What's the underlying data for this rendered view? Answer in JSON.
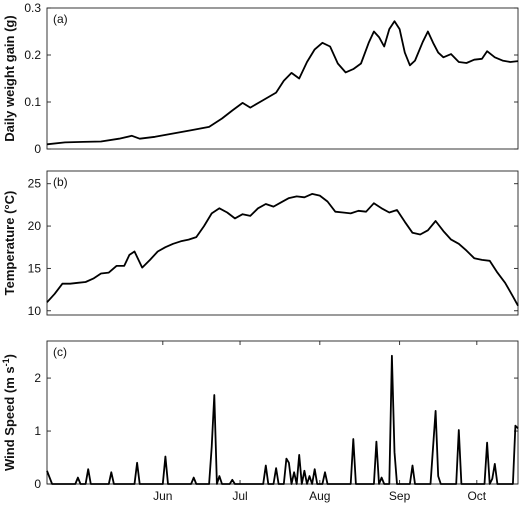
{
  "chart_data": [
    {
      "type": "line",
      "panel_label": "(a)",
      "xlabel": "",
      "ylabel": "Daily weight gain (g)",
      "x_type": "date",
      "xlim": [
        "2016-05-01",
        "2016-10-31"
      ],
      "ylim": [
        0,
        0.3
      ],
      "yticks": [
        0,
        0.1,
        0.2,
        0.3
      ],
      "ytick_labels": [
        "0",
        "0.1",
        "0.2",
        "0.3"
      ],
      "grid": false,
      "series": [
        {
          "color": "#000000",
          "points": [
            [
              "2016-05-01",
              0.01
            ],
            [
              "2016-05-08",
              0.014
            ],
            [
              "2016-05-15",
              0.015
            ],
            [
              "2016-05-22",
              0.016
            ],
            [
              "2016-05-29",
              0.022
            ],
            [
              "2016-06-03",
              0.028
            ],
            [
              "2016-06-06",
              0.022
            ],
            [
              "2016-06-12",
              0.026
            ],
            [
              "2016-06-19",
              0.033
            ],
            [
              "2016-06-26",
              0.04
            ],
            [
              "2016-07-03",
              0.047
            ],
            [
              "2016-07-08",
              0.065
            ],
            [
              "2016-07-12",
              0.082
            ],
            [
              "2016-07-16",
              0.098
            ],
            [
              "2016-07-19",
              0.088
            ],
            [
              "2016-07-24",
              0.104
            ],
            [
              "2016-07-29",
              0.12
            ],
            [
              "2016-08-01",
              0.145
            ],
            [
              "2016-08-04",
              0.162
            ],
            [
              "2016-08-07",
              0.15
            ],
            [
              "2016-08-10",
              0.185
            ],
            [
              "2016-08-13",
              0.212
            ],
            [
              "2016-08-16",
              0.226
            ],
            [
              "2016-08-19",
              0.218
            ],
            [
              "2016-08-22",
              0.182
            ],
            [
              "2016-08-25",
              0.163
            ],
            [
              "2016-08-28",
              0.17
            ],
            [
              "2016-08-31",
              0.182
            ],
            [
              "2016-09-03",
              0.226
            ],
            [
              "2016-09-05",
              0.25
            ],
            [
              "2016-09-07",
              0.238
            ],
            [
              "2016-09-09",
              0.218
            ],
            [
              "2016-09-11",
              0.255
            ],
            [
              "2016-09-13",
              0.272
            ],
            [
              "2016-09-15",
              0.255
            ],
            [
              "2016-09-17",
              0.205
            ],
            [
              "2016-09-19",
              0.178
            ],
            [
              "2016-09-21",
              0.188
            ],
            [
              "2016-09-24",
              0.228
            ],
            [
              "2016-09-26",
              0.25
            ],
            [
              "2016-09-28",
              0.226
            ],
            [
              "2016-09-30",
              0.205
            ],
            [
              "2016-10-02",
              0.195
            ],
            [
              "2016-10-05",
              0.202
            ],
            [
              "2016-10-08",
              0.185
            ],
            [
              "2016-10-11",
              0.183
            ],
            [
              "2016-10-14",
              0.19
            ],
            [
              "2016-10-17",
              0.192
            ],
            [
              "2016-10-19",
              0.208
            ],
            [
              "2016-10-22",
              0.195
            ],
            [
              "2016-10-25",
              0.188
            ],
            [
              "2016-10-28",
              0.185
            ],
            [
              "2016-10-31",
              0.187
            ]
          ]
        }
      ]
    },
    {
      "type": "line",
      "panel_label": "(b)",
      "xlabel": "",
      "ylabel": "Temperature (°C)",
      "x_type": "date",
      "xlim": [
        "2016-05-01",
        "2016-10-31"
      ],
      "ylim": [
        9.5,
        26.5
      ],
      "yticks": [
        10,
        15,
        20,
        25
      ],
      "ytick_labels": [
        "10",
        "15",
        "20",
        "25"
      ],
      "grid": false,
      "series": [
        {
          "color": "#000000",
          "points": [
            [
              "2016-05-01",
              11.0
            ],
            [
              "2016-05-04",
              12.0
            ],
            [
              "2016-05-07",
              13.2
            ],
            [
              "2016-05-10",
              13.2
            ],
            [
              "2016-05-13",
              13.3
            ],
            [
              "2016-05-16",
              13.4
            ],
            [
              "2016-05-19",
              13.8
            ],
            [
              "2016-05-22",
              14.4
            ],
            [
              "2016-05-25",
              14.5
            ],
            [
              "2016-05-28",
              15.3
            ],
            [
              "2016-05-31",
              15.3
            ],
            [
              "2016-06-02",
              16.6
            ],
            [
              "2016-06-04",
              17.0
            ],
            [
              "2016-06-07",
              15.1
            ],
            [
              "2016-06-10",
              16.0
            ],
            [
              "2016-06-13",
              17.0
            ],
            [
              "2016-06-16",
              17.5
            ],
            [
              "2016-06-19",
              17.9
            ],
            [
              "2016-06-22",
              18.2
            ],
            [
              "2016-06-25",
              18.4
            ],
            [
              "2016-06-28",
              18.7
            ],
            [
              "2016-07-01",
              20.0
            ],
            [
              "2016-07-04",
              21.5
            ],
            [
              "2016-07-07",
              22.1
            ],
            [
              "2016-07-10",
              21.6
            ],
            [
              "2016-07-13",
              20.9
            ],
            [
              "2016-07-16",
              21.4
            ],
            [
              "2016-07-19",
              21.2
            ],
            [
              "2016-07-22",
              22.1
            ],
            [
              "2016-07-25",
              22.6
            ],
            [
              "2016-07-28",
              22.3
            ],
            [
              "2016-07-31",
              22.8
            ],
            [
              "2016-08-03",
              23.3
            ],
            [
              "2016-08-06",
              23.5
            ],
            [
              "2016-08-09",
              23.4
            ],
            [
              "2016-08-12",
              23.8
            ],
            [
              "2016-08-15",
              23.6
            ],
            [
              "2016-08-18",
              22.9
            ],
            [
              "2016-08-21",
              21.7
            ],
            [
              "2016-08-24",
              21.6
            ],
            [
              "2016-08-27",
              21.5
            ],
            [
              "2016-08-30",
              21.8
            ],
            [
              "2016-09-02",
              21.7
            ],
            [
              "2016-09-05",
              22.7
            ],
            [
              "2016-09-08",
              22.1
            ],
            [
              "2016-09-11",
              21.6
            ],
            [
              "2016-09-14",
              21.9
            ],
            [
              "2016-09-17",
              20.5
            ],
            [
              "2016-09-20",
              19.2
            ],
            [
              "2016-09-23",
              19.0
            ],
            [
              "2016-09-26",
              19.5
            ],
            [
              "2016-09-29",
              20.6
            ],
            [
              "2016-10-02",
              19.4
            ],
            [
              "2016-10-05",
              18.4
            ],
            [
              "2016-10-08",
              17.9
            ],
            [
              "2016-10-11",
              17.1
            ],
            [
              "2016-10-14",
              16.2
            ],
            [
              "2016-10-17",
              16.0
            ],
            [
              "2016-10-20",
              15.9
            ],
            [
              "2016-10-23",
              14.5
            ],
            [
              "2016-10-26",
              13.3
            ],
            [
              "2016-10-29",
              11.7
            ],
            [
              "2016-10-31",
              10.6
            ]
          ]
        }
      ]
    },
    {
      "type": "line",
      "panel_label": "(c)",
      "xlabel": "",
      "ylabel": "Wind Speed (m s⁻¹)",
      "x_type": "date",
      "xlim": [
        "2016-05-01",
        "2016-10-31"
      ],
      "ylim": [
        0,
        2.7
      ],
      "yticks": [
        0,
        1,
        2
      ],
      "ytick_labels": [
        "0",
        "1",
        "2"
      ],
      "xticks": [
        "2016-06-15",
        "2016-07-15",
        "2016-08-15",
        "2016-09-15",
        "2016-10-15"
      ],
      "xtick_labels": [
        "Jun",
        "Jul",
        "Aug",
        "Sep",
        "Oct"
      ],
      "grid": false,
      "series": [
        {
          "color": "#000000",
          "points": [
            [
              "2016-05-01",
              0.25
            ],
            [
              "2016-05-03",
              0
            ],
            [
              "2016-05-12",
              0
            ],
            [
              "2016-05-13",
              0.12
            ],
            [
              "2016-05-14",
              0
            ],
            [
              "2016-05-16",
              0
            ],
            [
              "2016-05-17",
              0.28
            ],
            [
              "2016-05-18",
              0
            ],
            [
              "2016-05-25",
              0
            ],
            [
              "2016-05-26",
              0.22
            ],
            [
              "2016-05-27",
              0
            ],
            [
              "2016-06-04",
              0
            ],
            [
              "2016-06-05",
              0.4
            ],
            [
              "2016-06-06",
              0
            ],
            [
              "2016-06-15",
              0
            ],
            [
              "2016-06-16",
              0.52
            ],
            [
              "2016-06-17",
              0
            ],
            [
              "2016-06-26",
              0
            ],
            [
              "2016-06-27",
              0.12
            ],
            [
              "2016-06-28",
              0
            ],
            [
              "2016-07-03",
              0
            ],
            [
              "2016-07-04",
              0.7
            ],
            [
              "2016-07-05",
              1.68
            ],
            [
              "2016-07-06",
              0
            ],
            [
              "2016-07-07",
              0.15
            ],
            [
              "2016-07-08",
              0
            ],
            [
              "2016-07-11",
              0
            ],
            [
              "2016-07-12",
              0.08
            ],
            [
              "2016-07-13",
              0
            ],
            [
              "2016-07-24",
              0
            ],
            [
              "2016-07-25",
              0.35
            ],
            [
              "2016-07-26",
              0
            ],
            [
              "2016-07-28",
              0
            ],
            [
              "2016-07-29",
              0.3
            ],
            [
              "2016-07-30",
              0
            ],
            [
              "2016-08-01",
              0
            ],
            [
              "2016-08-02",
              0.48
            ],
            [
              "2016-08-03",
              0.4
            ],
            [
              "2016-08-04",
              0
            ],
            [
              "2016-08-05",
              0.22
            ],
            [
              "2016-08-06",
              0
            ],
            [
              "2016-08-07",
              0.55
            ],
            [
              "2016-08-08",
              0
            ],
            [
              "2016-08-09",
              0.25
            ],
            [
              "2016-08-10",
              0
            ],
            [
              "2016-08-11",
              0.15
            ],
            [
              "2016-08-12",
              0
            ],
            [
              "2016-08-13",
              0.28
            ],
            [
              "2016-08-14",
              0
            ],
            [
              "2016-08-16",
              0
            ],
            [
              "2016-08-17",
              0.22
            ],
            [
              "2016-08-18",
              0
            ],
            [
              "2016-08-27",
              0
            ],
            [
              "2016-08-28",
              0.85
            ],
            [
              "2016-08-29",
              0
            ],
            [
              "2016-09-05",
              0
            ],
            [
              "2016-09-06",
              0.8
            ],
            [
              "2016-09-07",
              0
            ],
            [
              "2016-09-08",
              0.12
            ],
            [
              "2016-09-09",
              0
            ],
            [
              "2016-09-11",
              0
            ],
            [
              "2016-09-12",
              2.42
            ],
            [
              "2016-09-13",
              0.6
            ],
            [
              "2016-09-14",
              0
            ],
            [
              "2016-09-19",
              0
            ],
            [
              "2016-09-20",
              0.35
            ],
            [
              "2016-09-21",
              0
            ],
            [
              "2016-09-27",
              0
            ],
            [
              "2016-09-29",
              1.38
            ],
            [
              "2016-09-30",
              0.15
            ],
            [
              "2016-10-01",
              0
            ],
            [
              "2016-10-07",
              0
            ],
            [
              "2016-10-08",
              1.02
            ],
            [
              "2016-10-09",
              0
            ],
            [
              "2016-10-18",
              0
            ],
            [
              "2016-10-19",
              0.78
            ],
            [
              "2016-10-20",
              0
            ],
            [
              "2016-10-21",
              0.1
            ],
            [
              "2016-10-22",
              0.38
            ],
            [
              "2016-10-23",
              0
            ],
            [
              "2016-10-29",
              0
            ],
            [
              "2016-10-30",
              1.1
            ],
            [
              "2016-10-31",
              1.05
            ]
          ]
        }
      ]
    }
  ]
}
